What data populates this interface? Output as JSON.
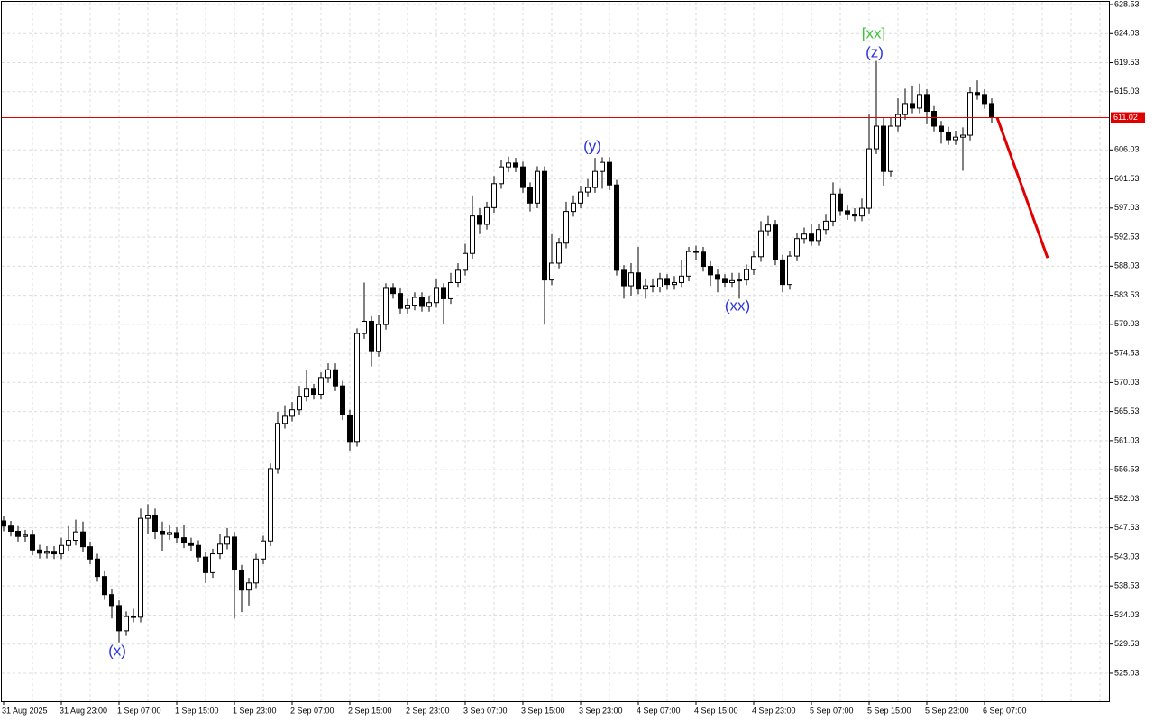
{
  "chart_data": {
    "type": "candlestick",
    "categories": [
      "31 Aug 2025",
      null,
      null,
      null,
      null,
      null,
      null,
      null,
      "31 Aug 23:00",
      null,
      null,
      null,
      null,
      null,
      null,
      null,
      "1 Sep 07:00",
      null,
      null,
      null,
      null,
      null,
      null,
      null,
      "1 Sep 15:00",
      null,
      null,
      null,
      null,
      null,
      null,
      null,
      "1 Sep 23:00",
      null,
      null,
      null,
      null,
      null,
      null,
      null,
      "2 Sep 07:00",
      null,
      null,
      null,
      null,
      null,
      null,
      null,
      "2 Sep 15:00",
      null,
      null,
      null,
      null,
      null,
      null,
      null,
      "2 Sep 23:00",
      null,
      null,
      null,
      null,
      null,
      null,
      null,
      "3 Sep 07:00",
      null,
      null,
      null,
      null,
      null,
      null,
      null,
      "3 Sep 15:00",
      null,
      null,
      null,
      null,
      null,
      null,
      null,
      "3 Sep 23:00",
      null,
      null,
      null,
      null,
      null,
      null,
      null,
      "4 Sep 07:00",
      null,
      null,
      null,
      null,
      null,
      null,
      null,
      "4 Sep 15:00",
      null,
      null,
      null,
      null,
      null,
      null,
      null,
      "4 Sep 23:00",
      null,
      null,
      null,
      null,
      null,
      null,
      null,
      "5 Sep 07:00",
      null,
      null,
      null,
      null,
      null,
      null,
      null,
      "5 Sep 15:00",
      null,
      null,
      null,
      null,
      null,
      null,
      null,
      "5 Sep 23:00",
      null,
      null,
      null,
      null,
      null,
      null,
      null,
      "6 Sep 07:00",
      null
    ],
    "open": [
      548.6,
      547.8,
      547.0,
      546.2,
      546.4,
      544.1,
      543.6,
      543.9,
      543.5,
      544.8,
      545.6,
      546.9,
      544.6,
      542.7,
      540.0,
      537.2,
      535.5,
      531.6,
      533.8,
      533.7,
      549.0,
      549.5,
      547.0,
      546.5,
      546.8,
      546.0,
      545.2,
      544.8,
      543.0,
      540.6,
      543.5,
      545.0,
      546.1,
      541.0,
      537.9,
      539.0,
      542.7,
      545.5,
      556.7,
      563.7,
      564.8,
      565.8,
      567.9,
      569.0,
      568.2,
      570.8,
      572.0,
      569.5,
      565.0,
      560.9,
      577.6,
      579.5,
      574.8,
      579.0,
      584.6,
      583.8,
      581.5,
      582.0,
      583.2,
      581.8,
      582.4,
      584.6,
      583.0,
      585.5,
      587.4,
      590.0,
      595.8,
      594.5,
      597.1,
      600.8,
      603.4,
      604.0,
      603.4,
      600.2,
      597.8,
      602.7,
      585.9,
      588.5,
      591.6,
      596.5,
      597.8,
      599.5,
      600.2,
      602.7,
      604.1,
      600.6,
      587.4,
      585.0,
      587.0,
      584.5,
      585.0,
      584.8,
      586.0,
      585.2,
      585.5,
      586.5,
      590.3,
      590.2,
      588.0,
      586.7,
      586.0,
      585.5,
      585.8,
      585.9,
      587.5,
      589.5,
      593.5,
      594.4,
      589.0,
      585.2,
      589.6,
      592.3,
      593.0,
      592.0,
      593.7,
      595.0,
      599.2,
      596.6,
      596.0,
      595.8,
      597.0,
      606.2,
      609.7,
      602.7,
      609.7,
      611.5,
      613.2,
      612.5,
      614.6,
      612.0,
      609.7,
      608.8,
      607.6,
      608.0,
      608.3,
      614.9,
      614.6,
      613.2
    ],
    "high": [
      549.4,
      548.6,
      547.8,
      547.2,
      547.2,
      544.9,
      544.7,
      544.7,
      546.0,
      547.8,
      548.8,
      548.5,
      545.4,
      543.5,
      540.8,
      538.0,
      536.3,
      534.6,
      535.0,
      550.5,
      551.2,
      550.5,
      548.5,
      548.0,
      547.6,
      548.0,
      546.0,
      545.6,
      543.8,
      544.3,
      546.5,
      547.5,
      546.9,
      541.8,
      539.8,
      543.5,
      546.3,
      557.5,
      565.5,
      566.5,
      567.0,
      569.5,
      572.0,
      569.8,
      571.6,
      573.0,
      573.0,
      570.3,
      565.8,
      578.4,
      585.5,
      580.3,
      580.5,
      585.4,
      585.4,
      584.6,
      583.0,
      584.0,
      584.0,
      583.5,
      586.0,
      585.4,
      587.0,
      588.5,
      591.5,
      599.0,
      597.0,
      598.0,
      602.0,
      604.5,
      605.0,
      604.8,
      604.2,
      601.0,
      603.5,
      603.5,
      593.0,
      592.4,
      598.0,
      599.0,
      600.5,
      601.5,
      604.8,
      604.9,
      604.9,
      601.4,
      588.2,
      588.5,
      591.0,
      586.0,
      586.0,
      587.0,
      586.8,
      586.5,
      589.0,
      591.0,
      591.2,
      591.0,
      588.8,
      587.5,
      586.8,
      587.0,
      587.0,
      588.3,
      590.3,
      595.0,
      595.8,
      595.2,
      589.8,
      590.4,
      593.1,
      594.0,
      594.5,
      594.5,
      596.0,
      601.0,
      600.0,
      597.4,
      597.0,
      598.5,
      611.5,
      619.8,
      611.0,
      611.0,
      614.0,
      615.5,
      616.0,
      616.3,
      615.4,
      612.8,
      610.5,
      609.6,
      609.0,
      609.5,
      615.7,
      616.8,
      615.4,
      614.0
    ],
    "low": [
      547.0,
      546.2,
      545.4,
      545.4,
      543.3,
      542.8,
      542.8,
      542.7,
      542.7,
      544.0,
      544.8,
      543.8,
      541.9,
      539.2,
      536.4,
      533.5,
      529.8,
      530.8,
      532.9,
      532.9,
      546.5,
      545.8,
      544.0,
      545.7,
      545.2,
      544.4,
      544.0,
      542.2,
      539.0,
      539.8,
      542.7,
      544.2,
      533.5,
      534.5,
      535.5,
      538.2,
      541.9,
      544.7,
      555.9,
      562.9,
      564.0,
      565.0,
      567.1,
      567.4,
      567.4,
      570.0,
      568.7,
      564.2,
      559.5,
      560.1,
      576.8,
      572.5,
      574.0,
      578.2,
      583.0,
      580.7,
      580.7,
      581.2,
      581.0,
      581.0,
      581.6,
      579.0,
      582.2,
      584.7,
      586.6,
      589.2,
      593.0,
      593.7,
      596.3,
      600.0,
      602.6,
      602.6,
      599.4,
      596.5,
      597.0,
      579.0,
      585.1,
      587.7,
      590.8,
      595.7,
      597.0,
      598.7,
      599.4,
      600.0,
      599.8,
      586.6,
      583.0,
      583.5,
      583.7,
      583.0,
      584.0,
      584.0,
      584.4,
      584.4,
      584.7,
      585.7,
      589.0,
      587.2,
      585.0,
      584.0,
      584.7,
      584.7,
      583.0,
      585.1,
      586.7,
      588.7,
      592.7,
      588.2,
      584.0,
      584.4,
      588.8,
      591.5,
      591.2,
      591.2,
      592.9,
      594.2,
      595.8,
      595.2,
      595.0,
      595.0,
      596.2,
      605.4,
      600.5,
      601.9,
      608.9,
      610.7,
      611.7,
      611.7,
      610.0,
      608.9,
      607.0,
      606.8,
      606.8,
      602.8,
      607.5,
      613.8,
      612.4,
      610.2
    ],
    "close": [
      547.8,
      547.0,
      546.2,
      546.4,
      544.1,
      543.6,
      543.9,
      543.5,
      544.8,
      545.6,
      546.9,
      544.6,
      542.7,
      540.0,
      537.2,
      535.5,
      531.6,
      533.8,
      533.7,
      549.0,
      549.5,
      547.0,
      546.5,
      546.8,
      546.0,
      545.2,
      544.8,
      543.0,
      540.6,
      543.5,
      545.0,
      546.1,
      541.0,
      537.9,
      539.0,
      542.7,
      545.5,
      556.7,
      563.7,
      564.8,
      565.8,
      567.9,
      569.0,
      568.2,
      570.8,
      572.0,
      569.5,
      565.0,
      560.9,
      577.6,
      579.5,
      574.8,
      579.0,
      584.6,
      583.8,
      581.5,
      582.0,
      583.2,
      581.8,
      582.4,
      584.6,
      583.0,
      585.5,
      587.4,
      590.0,
      595.8,
      594.5,
      597.1,
      600.8,
      603.4,
      604.0,
      603.4,
      600.2,
      597.8,
      602.7,
      585.9,
      588.5,
      591.6,
      596.5,
      597.8,
      599.5,
      600.2,
      602.7,
      604.1,
      600.6,
      587.4,
      585.0,
      587.0,
      584.5,
      585.0,
      584.8,
      586.0,
      585.2,
      585.5,
      586.5,
      590.3,
      590.2,
      588.0,
      586.7,
      586.0,
      585.5,
      585.8,
      585.9,
      587.5,
      589.5,
      593.5,
      594.4,
      589.0,
      585.2,
      589.6,
      592.3,
      593.0,
      592.0,
      593.7,
      595.0,
      599.2,
      596.6,
      596.0,
      595.8,
      597.0,
      606.2,
      609.7,
      602.7,
      609.7,
      611.5,
      613.2,
      612.5,
      614.6,
      612.0,
      609.7,
      608.8,
      607.6,
      608.0,
      608.3,
      614.9,
      614.6,
      613.2,
      611.02
    ],
    "up_color": "#ffffff",
    "down_color": "#000000",
    "outline_color": "#000000",
    "ylim": [
      520.7,
      629.23
    ],
    "yticks": [
      628.53,
      624.03,
      619.53,
      615.03,
      606.03,
      601.53,
      597.03,
      592.53,
      588.03,
      583.53,
      579.03,
      574.53,
      570.03,
      565.53,
      561.03,
      556.53,
      552.03,
      547.53,
      543.03,
      538.53,
      534.03,
      529.53,
      525.03
    ],
    "grid": true,
    "current_price": 611.02,
    "current_price_color": "#e00000",
    "forecast": {
      "color": "#e00000",
      "values": [
        611.02,
        589.3
      ]
    },
    "annotations": [
      {
        "text": "(x)",
        "color": "#2a35d8"
      },
      {
        "text": "(y)",
        "color": "#2a35d8"
      },
      {
        "text": "(xx)",
        "color": "#2a35d8"
      },
      {
        "text": "[xx]",
        "color": "#3cc23c"
      },
      {
        "text": "(z)",
        "color": "#2a35d8"
      }
    ]
  }
}
